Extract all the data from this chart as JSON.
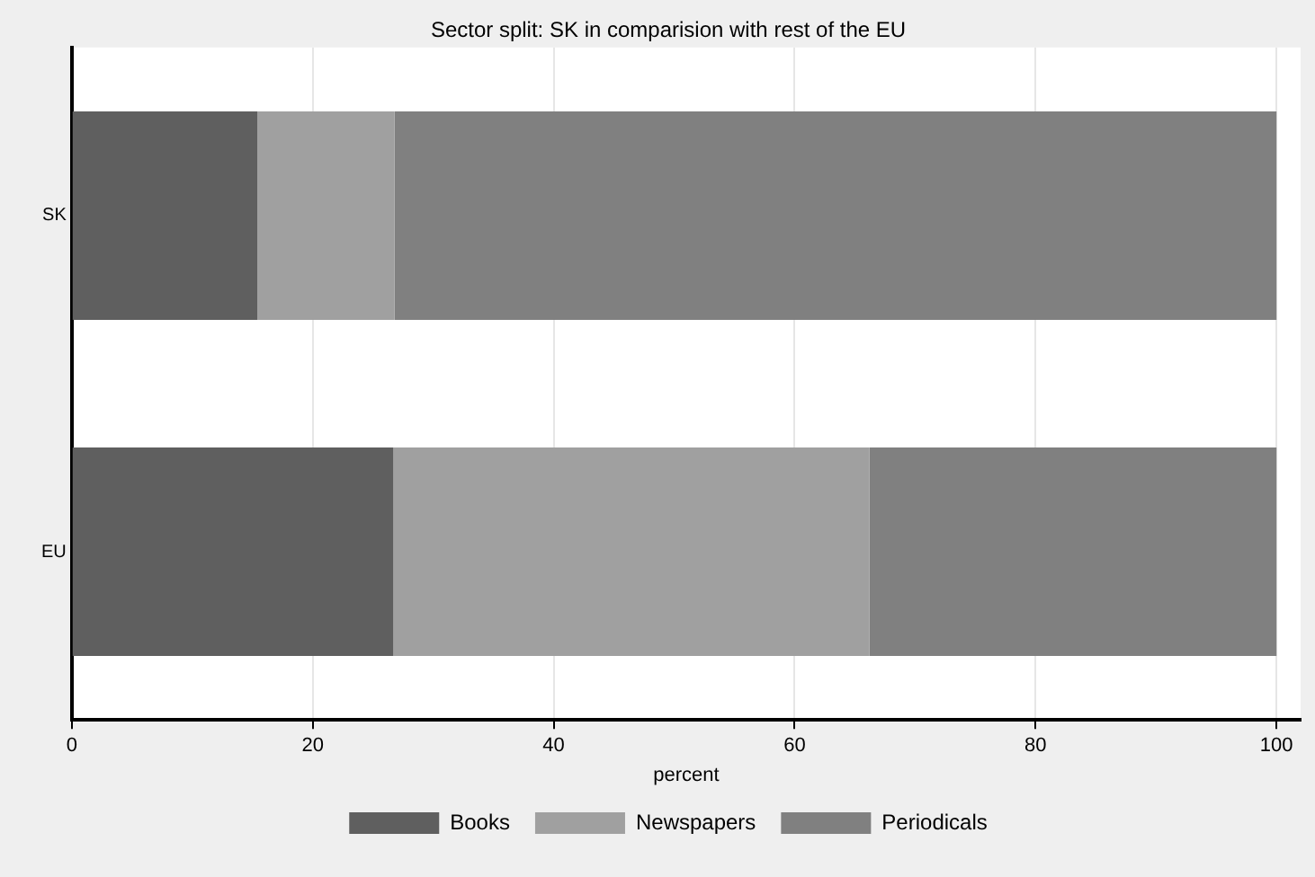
{
  "chart_data": {
    "type": "bar",
    "orientation": "horizontal",
    "stacked": true,
    "title": "Sector split: SK in comparision with rest of the EU",
    "xlabel": "percent",
    "categories": [
      "SK",
      "EU"
    ],
    "series": [
      {
        "name": "Books",
        "color": "#5f5f5f",
        "values": [
          15.4,
          26.7
        ]
      },
      {
        "name": "Newspapers",
        "color": "#a0a0a0",
        "values": [
          11.4,
          39.5
        ]
      },
      {
        "name": "Periodicals",
        "color": "#808080",
        "values": [
          73.2,
          33.8
        ]
      }
    ],
    "xlim": [
      0,
      102
    ],
    "xticks": [
      0,
      20,
      40,
      60,
      80,
      100
    ],
    "grid": "x",
    "legend": "bottom"
  }
}
